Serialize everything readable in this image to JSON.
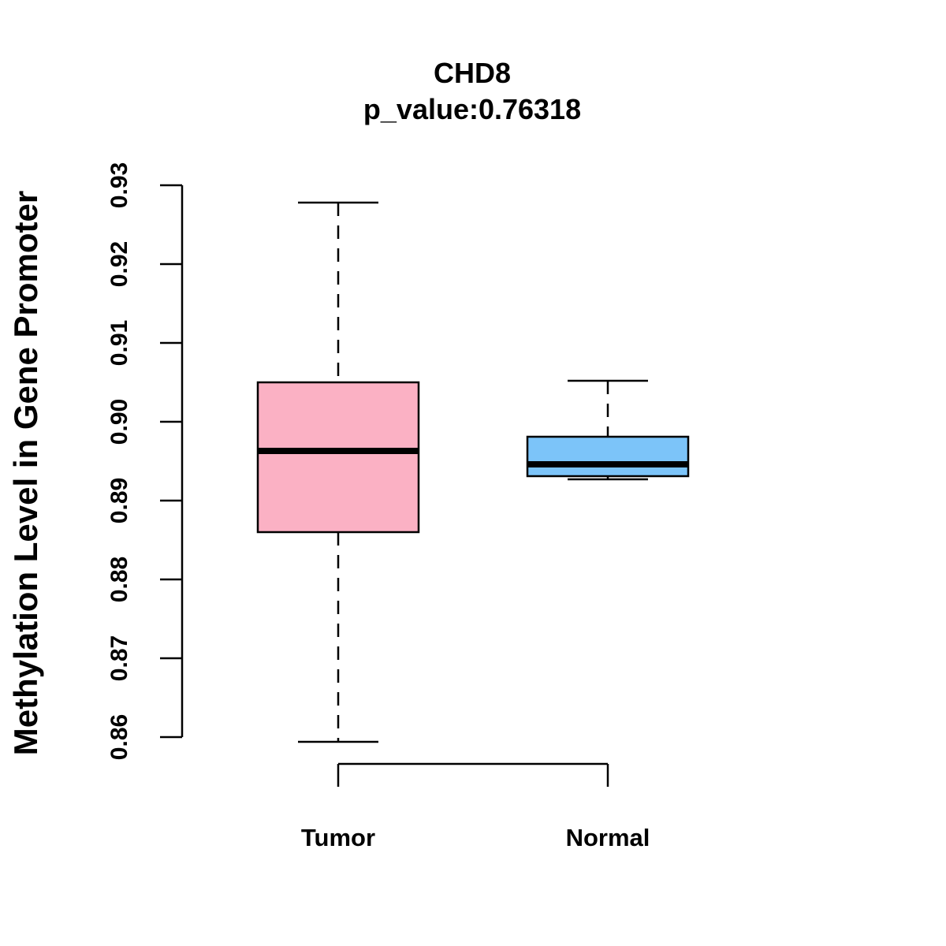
{
  "chart_data": {
    "type": "boxplot",
    "title": "CHD8",
    "subtitle": "p_value:0.76318",
    "xlabel": "",
    "ylabel": "Methylation Level in Gene Promoter",
    "ylim": [
      0.86,
      0.93
    ],
    "yticks": [
      0.86,
      0.87,
      0.88,
      0.89,
      0.9,
      0.91,
      0.92,
      0.93
    ],
    "ytick_labels": [
      "0.86",
      "0.87",
      "0.88",
      "0.89",
      "0.90",
      "0.91",
      "0.92",
      "0.93"
    ],
    "categories": [
      "Tumor",
      "Normal"
    ],
    "grid": false,
    "series": [
      {
        "name": "Tumor",
        "color": "#FBB1C4",
        "whisker_low": 0.8594,
        "q1": 0.886,
        "median": 0.8963,
        "q3": 0.905,
        "whisker_high": 0.9278
      },
      {
        "name": "Normal",
        "color": "#7CC4F9",
        "whisker_low": 0.8927,
        "q1": 0.8931,
        "median": 0.8946,
        "q3": 0.8981,
        "whisker_high": 0.9052
      }
    ]
  }
}
